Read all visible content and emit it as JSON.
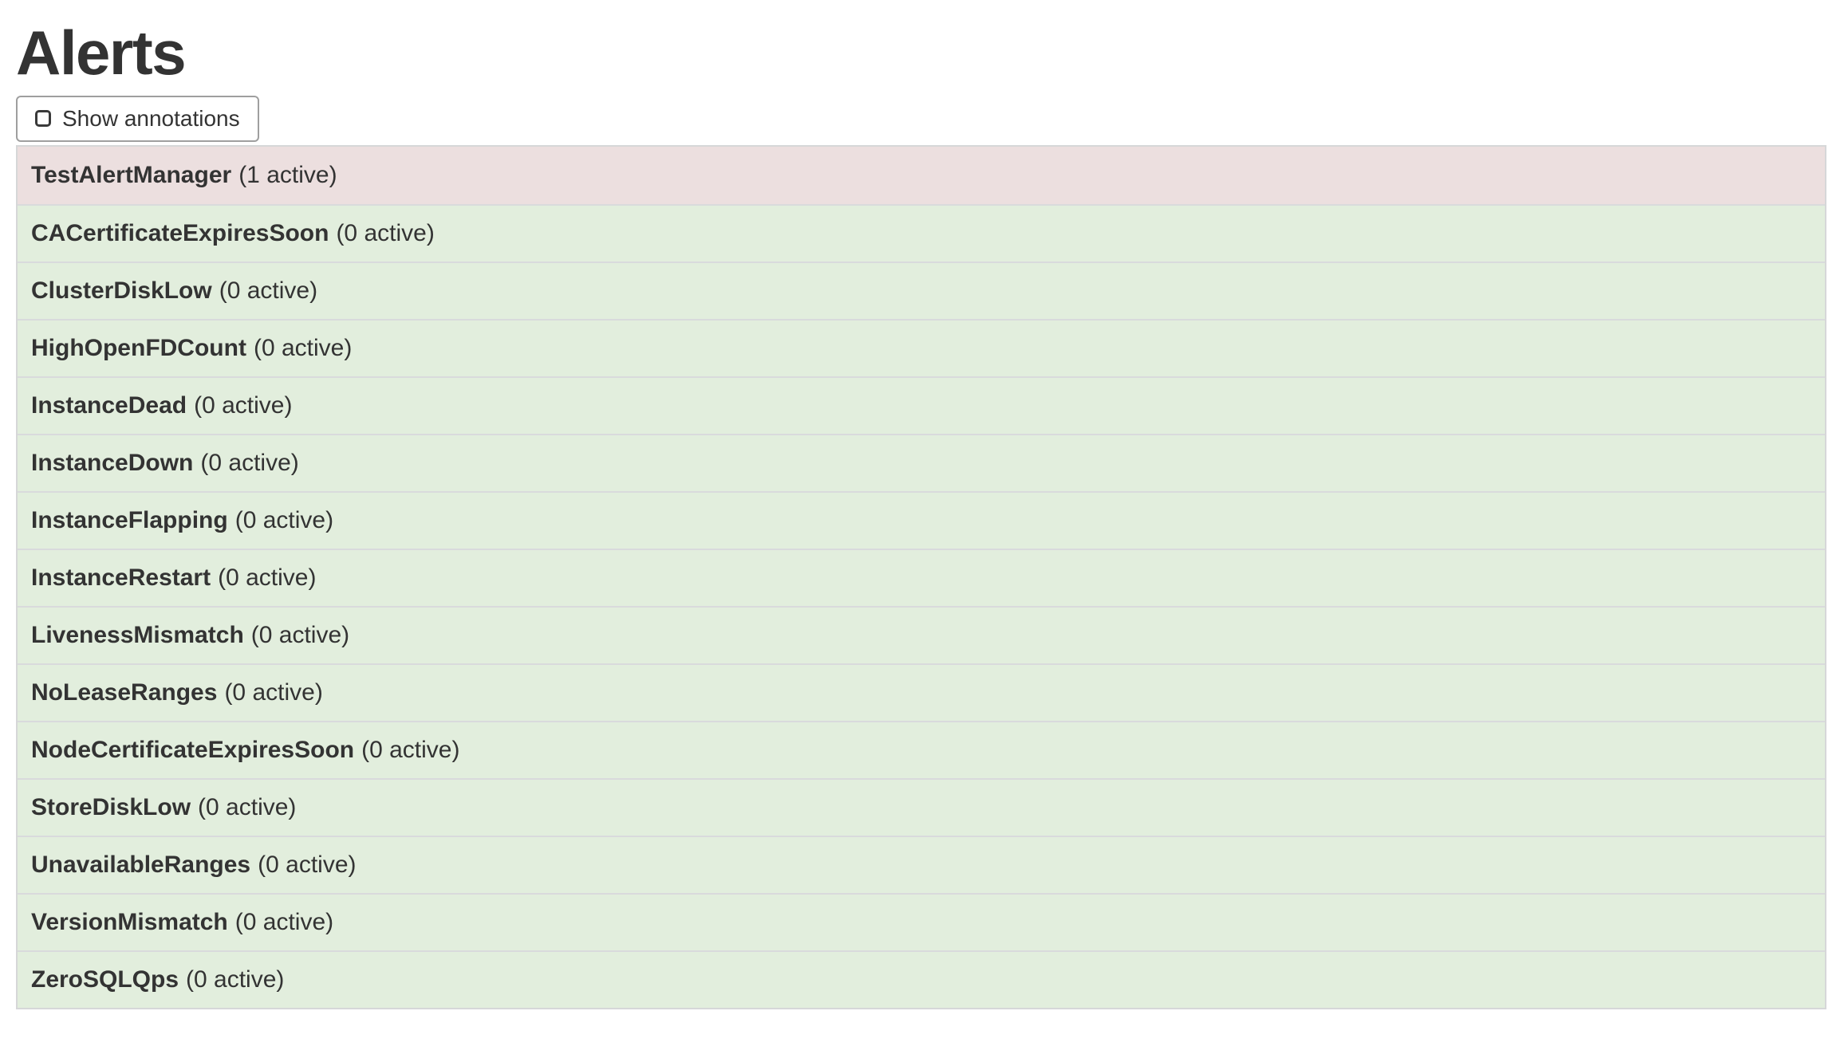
{
  "header": {
    "title": "Alerts",
    "show_annotations_label": "Show annotations",
    "show_annotations_checked": false
  },
  "icons": {
    "checkbox_unchecked": "rounded-square-outline"
  },
  "colors": {
    "danger_bg": "#ecdfdf",
    "success_bg": "#e2eedd",
    "divider": "#d9dadc",
    "table_border": "#d6d7d8",
    "button_border": "#9f9f9f",
    "text": "#333333"
  },
  "alerts": {
    "items": [
      {
        "name": "TestAlertManager",
        "active_count": 1,
        "count_label": "(1 active)",
        "state": "firing"
      },
      {
        "name": "CACertificateExpiresSoon",
        "active_count": 0,
        "count_label": "(0 active)",
        "state": "inactive"
      },
      {
        "name": "ClusterDiskLow",
        "active_count": 0,
        "count_label": "(0 active)",
        "state": "inactive"
      },
      {
        "name": "HighOpenFDCount",
        "active_count": 0,
        "count_label": "(0 active)",
        "state": "inactive"
      },
      {
        "name": "InstanceDead",
        "active_count": 0,
        "count_label": "(0 active)",
        "state": "inactive"
      },
      {
        "name": "InstanceDown",
        "active_count": 0,
        "count_label": "(0 active)",
        "state": "inactive"
      },
      {
        "name": "InstanceFlapping",
        "active_count": 0,
        "count_label": "(0 active)",
        "state": "inactive"
      },
      {
        "name": "InstanceRestart",
        "active_count": 0,
        "count_label": "(0 active)",
        "state": "inactive"
      },
      {
        "name": "LivenessMismatch",
        "active_count": 0,
        "count_label": "(0 active)",
        "state": "inactive"
      },
      {
        "name": "NoLeaseRanges",
        "active_count": 0,
        "count_label": "(0 active)",
        "state": "inactive"
      },
      {
        "name": "NodeCertificateExpiresSoon",
        "active_count": 0,
        "count_label": "(0 active)",
        "state": "inactive"
      },
      {
        "name": "StoreDiskLow",
        "active_count": 0,
        "count_label": "(0 active)",
        "state": "inactive"
      },
      {
        "name": "UnavailableRanges",
        "active_count": 0,
        "count_label": "(0 active)",
        "state": "inactive"
      },
      {
        "name": "VersionMismatch",
        "active_count": 0,
        "count_label": "(0 active)",
        "state": "inactive"
      },
      {
        "name": "ZeroSQLQps",
        "active_count": 0,
        "count_label": "(0 active)",
        "state": "inactive"
      }
    ]
  }
}
